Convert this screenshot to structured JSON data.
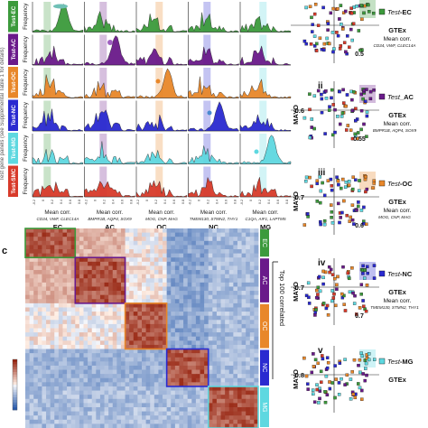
{
  "panel_b": {
    "rows": [
      {
        "label": "Test-EC",
        "ylabel": "Frequency",
        "color": "#3c9a3c",
        "peak": 0
      },
      {
        "label": "Test-AC",
        "ylabel": "Frequency",
        "color": "#6a1a8a",
        "peak": 1
      },
      {
        "label": "Test-OC",
        "ylabel": "Frequency",
        "color": "#e8872a",
        "peak": 2
      },
      {
        "label": "Test-NC",
        "ylabel": "Frequency",
        "color": "#2a2ad0",
        "peak": 3
      },
      {
        "label": "Test-MG",
        "ylabel": "Frequency",
        "color": "#5ed8e0",
        "peak": 4
      },
      {
        "label": "Test-SMC",
        "ylabel": "Frequency",
        "color": "#d83a2a",
        "peak": 5
      }
    ],
    "side_label": "Test gene panels (see Supplemental Table 1 for details)",
    "columns": [
      {
        "name": "EC",
        "xlabel": "Mean corr.",
        "genes": "CD34, VWF, CLEC14A",
        "color": "#3c9a3c"
      },
      {
        "name": "AC",
        "xlabel": "Mean corr.",
        "genes": "BMPR1B, AQP4, SOX9",
        "color": "#6a1a8a"
      },
      {
        "name": "OC",
        "xlabel": "Mean corr.",
        "genes": "MOG, CNP, MAG",
        "color": "#e8872a"
      },
      {
        "name": "NC",
        "xlabel": "Mean corr.",
        "genes": "TMEM130, STMN2, THY1",
        "color": "#2a2ad0"
      },
      {
        "name": "MG",
        "xlabel": "Mean corr.",
        "genes": "C1QA, AIF1, LAPTM5",
        "color": "#5ed8e0"
      }
    ],
    "tick_labels": [
      "-0.2",
      "0",
      "0.2",
      "0.4",
      "0.6",
      "0.8"
    ]
  },
  "panel_c": {
    "letter": "c",
    "side_label": "Top 100 correlated",
    "blocks": [
      {
        "name": "EC",
        "color": "#3c9a3c"
      },
      {
        "name": "AC",
        "color": "#6a1a8a"
      },
      {
        "name": "OC",
        "color": "#e8872a"
      },
      {
        "name": "NC",
        "color": "#2a2ad0"
      },
      {
        "name": "MG",
        "color": "#5ed8e0"
      }
    ]
  },
  "panel_d": {
    "subpanels": [
      {
        "roman": "",
        "legend": "Test-EC",
        "legend_it": "Test",
        "legend_rest": "-EC",
        "color": "#3c9a3c",
        "ylab": "",
        "ythr": "",
        "xthr": "0.5",
        "xlab": "GTEx",
        "mean": "Mean corr.",
        "genes": "CD34, VWF, CLEC14A"
      },
      {
        "roman": "ii",
        "legend": "Test_AC",
        "legend_it": "Test",
        "legend_rest": "_AC",
        "color": "#6a1a8a",
        "ylab": "MAYO",
        "ythr": "0.6",
        "xthr": "0.55",
        "xlab": "GTEx",
        "mean": "Mean corr.",
        "genes": "BMPR1B, AQP4, SOX9"
      },
      {
        "roman": "iii",
        "legend": "Test-OC",
        "legend_it": "Test",
        "legend_rest": "-OC",
        "color": "#e8872a",
        "ylab": "MAYO",
        "ythr": "0.7",
        "xthr": "0.6",
        "xlab": "GTEx",
        "mean": "Mean corr.",
        "genes": "MOG, CNP, MAG"
      },
      {
        "roman": "iv",
        "legend": "Test-NC",
        "legend_it": "Test",
        "legend_rest": "-NC",
        "color": "#2a2ad0",
        "ylab": "MAYO",
        "ythr": "0.7",
        "xthr": "0.7",
        "xlab": "GTEx",
        "mean": "Mean corr.",
        "genes": "TMEM130, STMN2, THY1"
      },
      {
        "roman": "v",
        "legend": "Test-MG",
        "legend_it": "Test",
        "legend_rest": "-MG",
        "color": "#5ed8e0",
        "ylab": "MAYO",
        "ythr": "0.8",
        "xthr": "",
        "xlab": "GTEx",
        "mean": "",
        "genes": ""
      }
    ]
  },
  "category_colors": [
    "#3c9a3c",
    "#6a1a8a",
    "#e8872a",
    "#2a2ad0",
    "#5ed8e0",
    "#d83a2a"
  ]
}
